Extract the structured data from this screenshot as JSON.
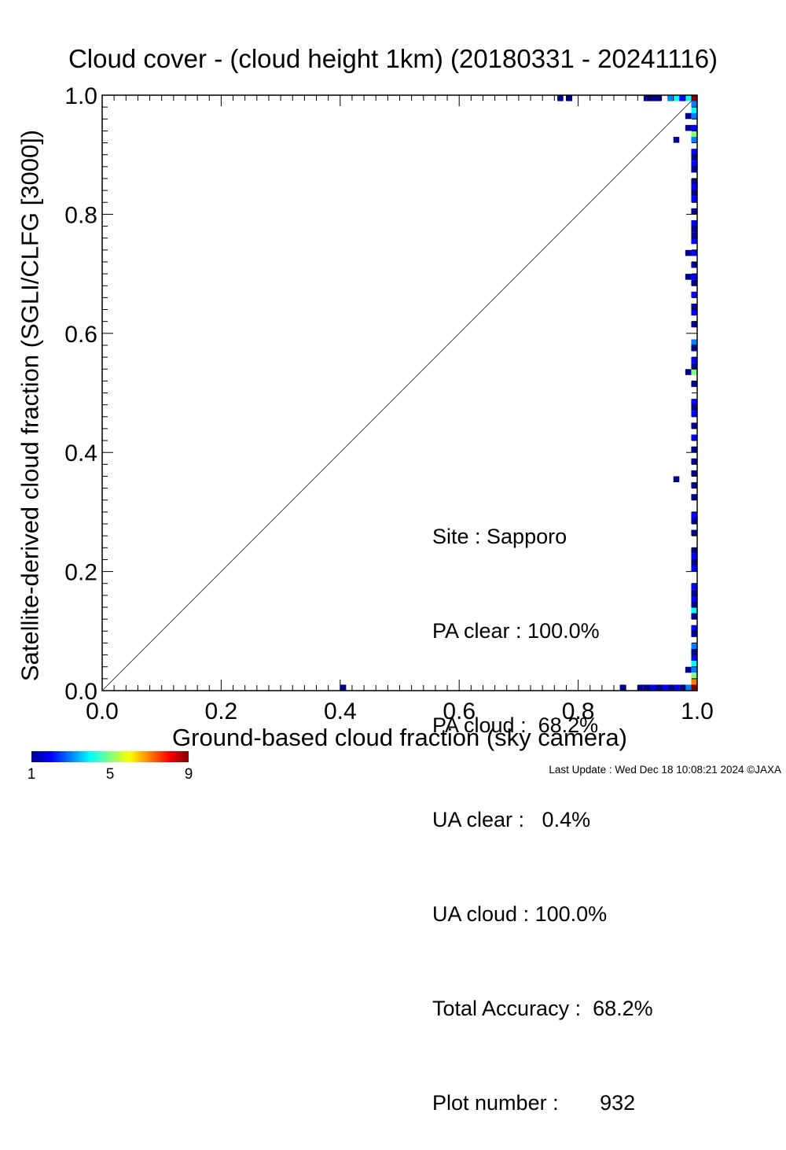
{
  "chart_data": {
    "type": "heatmap",
    "title": "Cloud cover - (cloud height 1km)  (20180331 - 20241116)",
    "xlabel": "Ground-based cloud fraction (sky camera)",
    "ylabel": "Satellite-derived cloud fraction (SGLI/CLFG [3000])",
    "xlim": [
      0.0,
      1.0
    ],
    "ylim": [
      0.0,
      1.0
    ],
    "x_ticks": [
      "0.0",
      "0.2",
      "0.4",
      "0.6",
      "0.8",
      "1.0"
    ],
    "y_ticks": [
      "0.0",
      "0.2",
      "0.4",
      "0.6",
      "0.8",
      "1.0"
    ],
    "reference_line": "1:1 diagonal",
    "colorbar": {
      "min": 1,
      "max": 9,
      "tick_labels": [
        "1",
        "5",
        "9"
      ],
      "colors": [
        "#00008f",
        "#0000ff",
        "#0080ff",
        "#00ffff",
        "#80ff80",
        "#ffff00",
        "#ff8000",
        "#ff0000",
        "#800000"
      ]
    },
    "cells": [
      {
        "x": 0.77,
        "y": 0.995,
        "count": 1
      },
      {
        "x": 0.785,
        "y": 0.995,
        "count": 1
      },
      {
        "x": 0.915,
        "y": 0.995,
        "count": 1
      },
      {
        "x": 0.925,
        "y": 0.995,
        "count": 1
      },
      {
        "x": 0.935,
        "y": 0.995,
        "count": 1
      },
      {
        "x": 0.955,
        "y": 0.995,
        "count": 3
      },
      {
        "x": 0.965,
        "y": 0.995,
        "count": 4
      },
      {
        "x": 0.975,
        "y": 0.995,
        "count": 2
      },
      {
        "x": 0.985,
        "y": 0.995,
        "count": 4
      },
      {
        "x": 0.995,
        "y": 0.995,
        "count": 9
      },
      {
        "x": 0.995,
        "y": 0.985,
        "count": 3
      },
      {
        "x": 0.995,
        "y": 0.975,
        "count": 4
      },
      {
        "x": 0.985,
        "y": 0.965,
        "count": 1
      },
      {
        "x": 0.995,
        "y": 0.965,
        "count": 3
      },
      {
        "x": 0.985,
        "y": 0.945,
        "count": 1
      },
      {
        "x": 0.995,
        "y": 0.945,
        "count": 2
      },
      {
        "x": 0.995,
        "y": 0.935,
        "count": 5
      },
      {
        "x": 0.965,
        "y": 0.925,
        "count": 1
      },
      {
        "x": 0.995,
        "y": 0.925,
        "count": 3
      },
      {
        "x": 0.995,
        "y": 0.905,
        "count": 2
      },
      {
        "x": 0.995,
        "y": 0.895,
        "count": 1
      },
      {
        "x": 0.995,
        "y": 0.885,
        "count": 2
      },
      {
        "x": 0.995,
        "y": 0.875,
        "count": 1
      },
      {
        "x": 0.995,
        "y": 0.855,
        "count": 1
      },
      {
        "x": 0.995,
        "y": 0.845,
        "count": 2
      },
      {
        "x": 0.995,
        "y": 0.835,
        "count": 1
      },
      {
        "x": 0.995,
        "y": 0.825,
        "count": 2
      },
      {
        "x": 0.995,
        "y": 0.805,
        "count": 1
      },
      {
        "x": 0.995,
        "y": 0.785,
        "count": 2
      },
      {
        "x": 0.995,
        "y": 0.775,
        "count": 1
      },
      {
        "x": 0.995,
        "y": 0.765,
        "count": 1
      },
      {
        "x": 0.995,
        "y": 0.755,
        "count": 2
      },
      {
        "x": 0.985,
        "y": 0.735,
        "count": 1
      },
      {
        "x": 0.995,
        "y": 0.735,
        "count": 2
      },
      {
        "x": 0.995,
        "y": 0.715,
        "count": 1
      },
      {
        "x": 0.985,
        "y": 0.695,
        "count": 1
      },
      {
        "x": 0.995,
        "y": 0.695,
        "count": 2
      },
      {
        "x": 0.995,
        "y": 0.685,
        "count": 1
      },
      {
        "x": 0.995,
        "y": 0.665,
        "count": 2
      },
      {
        "x": 0.995,
        "y": 0.645,
        "count": 1
      },
      {
        "x": 0.995,
        "y": 0.635,
        "count": 2
      },
      {
        "x": 0.995,
        "y": 0.615,
        "count": 1
      },
      {
        "x": 0.995,
        "y": 0.585,
        "count": 3
      },
      {
        "x": 0.995,
        "y": 0.575,
        "count": 1
      },
      {
        "x": 0.995,
        "y": 0.555,
        "count": 2
      },
      {
        "x": 0.995,
        "y": 0.545,
        "count": 1
      },
      {
        "x": 0.985,
        "y": 0.535,
        "count": 1
      },
      {
        "x": 0.995,
        "y": 0.535,
        "count": 5
      },
      {
        "x": 0.995,
        "y": 0.515,
        "count": 1
      },
      {
        "x": 0.995,
        "y": 0.485,
        "count": 2
      },
      {
        "x": 0.995,
        "y": 0.475,
        "count": 1
      },
      {
        "x": 0.995,
        "y": 0.465,
        "count": 2
      },
      {
        "x": 0.995,
        "y": 0.445,
        "count": 1
      },
      {
        "x": 0.995,
        "y": 0.425,
        "count": 2
      },
      {
        "x": 0.995,
        "y": 0.405,
        "count": 1
      },
      {
        "x": 0.995,
        "y": 0.385,
        "count": 1
      },
      {
        "x": 0.995,
        "y": 0.365,
        "count": 1
      },
      {
        "x": 0.965,
        "y": 0.355,
        "count": 1
      },
      {
        "x": 0.995,
        "y": 0.345,
        "count": 1
      },
      {
        "x": 0.995,
        "y": 0.325,
        "count": 1
      },
      {
        "x": 0.995,
        "y": 0.295,
        "count": 2
      },
      {
        "x": 0.995,
        "y": 0.285,
        "count": 1
      },
      {
        "x": 0.995,
        "y": 0.265,
        "count": 1
      },
      {
        "x": 0.995,
        "y": 0.235,
        "count": 1
      },
      {
        "x": 0.995,
        "y": 0.225,
        "count": 2
      },
      {
        "x": 0.995,
        "y": 0.215,
        "count": 1
      },
      {
        "x": 0.995,
        "y": 0.205,
        "count": 2
      },
      {
        "x": 0.995,
        "y": 0.175,
        "count": 2
      },
      {
        "x": 0.995,
        "y": 0.165,
        "count": 1
      },
      {
        "x": 0.995,
        "y": 0.155,
        "count": 2
      },
      {
        "x": 0.995,
        "y": 0.145,
        "count": 1
      },
      {
        "x": 0.995,
        "y": 0.135,
        "count": 4
      },
      {
        "x": 0.995,
        "y": 0.125,
        "count": 1
      },
      {
        "x": 0.995,
        "y": 0.105,
        "count": 2
      },
      {
        "x": 0.995,
        "y": 0.095,
        "count": 1
      },
      {
        "x": 0.995,
        "y": 0.075,
        "count": 3
      },
      {
        "x": 0.995,
        "y": 0.065,
        "count": 1
      },
      {
        "x": 0.995,
        "y": 0.055,
        "count": 2
      },
      {
        "x": 0.995,
        "y": 0.045,
        "count": 4
      },
      {
        "x": 0.985,
        "y": 0.035,
        "count": 1
      },
      {
        "x": 0.995,
        "y": 0.035,
        "count": 3
      },
      {
        "x": 0.995,
        "y": 0.025,
        "count": 5
      },
      {
        "x": 0.995,
        "y": 0.015,
        "count": 7
      },
      {
        "x": 0.405,
        "y": 0.005,
        "count": 1
      },
      {
        "x": 0.875,
        "y": 0.005,
        "count": 1
      },
      {
        "x": 0.905,
        "y": 0.005,
        "count": 1
      },
      {
        "x": 0.915,
        "y": 0.005,
        "count": 1
      },
      {
        "x": 0.925,
        "y": 0.005,
        "count": 2
      },
      {
        "x": 0.935,
        "y": 0.005,
        "count": 1
      },
      {
        "x": 0.945,
        "y": 0.005,
        "count": 2
      },
      {
        "x": 0.955,
        "y": 0.005,
        "count": 1
      },
      {
        "x": 0.965,
        "y": 0.005,
        "count": 2
      },
      {
        "x": 0.975,
        "y": 0.005,
        "count": 1
      },
      {
        "x": 0.985,
        "y": 0.005,
        "count": 3
      },
      {
        "x": 0.995,
        "y": 0.005,
        "count": 9
      }
    ]
  },
  "stats": [
    "Site : Sapporo",
    "PA clear : 100.0%",
    "PA cloud :  68.2%",
    "UA clear :   0.4%",
    "UA cloud : 100.0%",
    "Total Accuracy :  68.2%",
    "Plot number :       932"
  ],
  "footer": "Last Update : Wed Dec 18 10:08:21 2024  ©JAXA"
}
